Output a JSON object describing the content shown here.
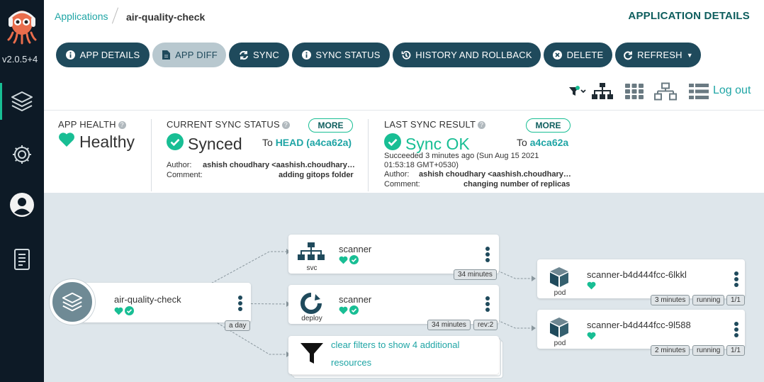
{
  "sidebar": {
    "version": "v2.0.5+4",
    "items": [
      {
        "name": "applications-icon"
      },
      {
        "name": "settings-icon"
      },
      {
        "name": "user-icon"
      },
      {
        "name": "docs-icon"
      }
    ]
  },
  "breadcrumb": {
    "root": "Applications",
    "current": "air-quality-check"
  },
  "page_title": "APPLICATION DETAILS",
  "actions": [
    {
      "label": "APP DETAILS",
      "icon": "info-icon"
    },
    {
      "label": "APP DIFF",
      "icon": "file-icon"
    },
    {
      "label": "SYNC",
      "icon": "sync-icon"
    },
    {
      "label": "SYNC STATUS",
      "icon": "info-icon"
    },
    {
      "label": "HISTORY AND ROLLBACK",
      "icon": "history-icon"
    },
    {
      "label": "DELETE",
      "icon": "delete-icon"
    },
    {
      "label": "REFRESH",
      "icon": "refresh-icon"
    }
  ],
  "toolbar": {
    "logout": "Log out"
  },
  "health": {
    "label": "APP HEALTH",
    "value": "Healthy"
  },
  "sync_status": {
    "label": "CURRENT SYNC STATUS",
    "more": "MORE",
    "value": "Synced",
    "to_prefix": "To",
    "to_ref": "HEAD (a4ca62a)",
    "author_label": "Author:",
    "author": "ashish choudhary <aashish.choudhary…",
    "comment_label": "Comment:",
    "comment": "adding gitops folder"
  },
  "last_sync": {
    "label": "LAST SYNC RESULT",
    "more": "MORE",
    "value": "Sync OK",
    "to_prefix": "To",
    "to_ref": "a4ca62a",
    "succeeded_line1": "Succeeded 3 minutes ago (Sun Aug 15 2021",
    "succeeded_line2": "01:53:18 GMT+0530)",
    "author_label": "Author:",
    "author": "ashish choudhary <aashish.choudhary…",
    "comment_label": "Comment:",
    "comment": "changing number of replicas"
  },
  "graph": {
    "app": {
      "name": "air-quality-check",
      "age": "a day"
    },
    "svc": {
      "name": "scanner",
      "kind": "svc",
      "age": "34 minutes"
    },
    "deploy": {
      "name": "scanner",
      "kind": "deploy",
      "age": "34 minutes",
      "rev": "rev:2"
    },
    "filter": {
      "line1": "clear filters to show 4 additional",
      "line2": "resources"
    },
    "pods": [
      {
        "name": "scanner-b4d444fcc-6lkkl",
        "kind": "pod",
        "age": "3 minutes",
        "status": "running",
        "ready": "1/1"
      },
      {
        "name": "scanner-b4d444fcc-9l588",
        "kind": "pod",
        "age": "2 minutes",
        "status": "running",
        "ready": "1/1"
      }
    ]
  },
  "colors": {
    "accent": "#18be94",
    "link": "#1fa5a5",
    "button": "#1f4a5c",
    "sidebar": "#0d1a26",
    "graph_bg": "#dee6eb"
  }
}
